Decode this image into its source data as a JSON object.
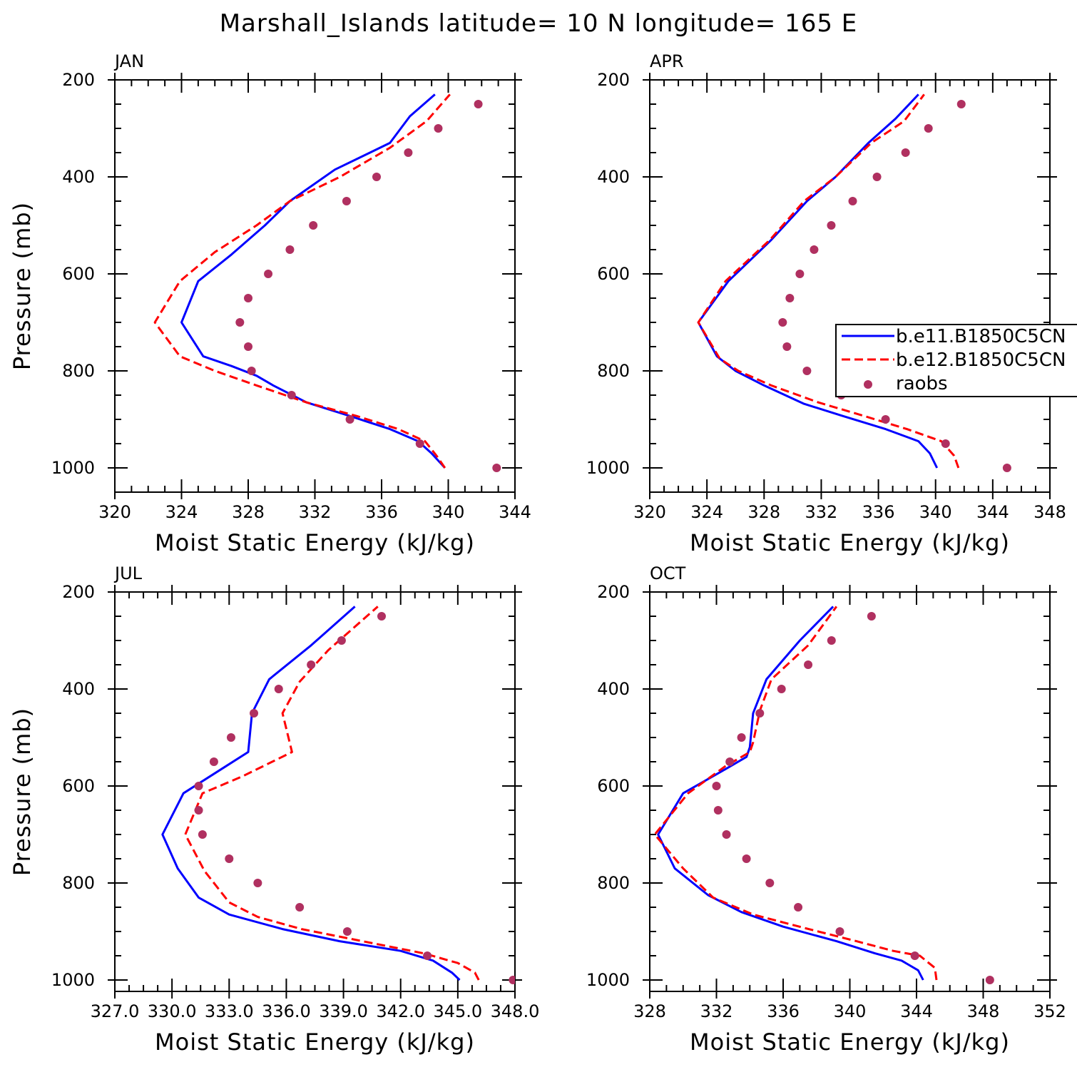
{
  "title": "Marshall_Islands  latitude= 10 N longitude= 165 E",
  "colors": {
    "series1": "#0000ff",
    "series2": "#ff0000",
    "raobs": "#b03060"
  },
  "legend": {
    "entries": [
      "b.e11.B1850C5CN",
      "b.e12.B1850C5CN",
      "raobs"
    ],
    "placement": "right, in APR panel"
  },
  "chart_data": [
    {
      "type": "line",
      "panel": "JAN",
      "xlabel": "Moist Static Energy (kJ/kg)",
      "ylabel": "Pressure (mb)",
      "xlim": [
        320,
        344
      ],
      "ylim": [
        1000,
        200
      ],
      "y_inverted": true,
      "xticks": [
        320,
        324,
        328,
        332,
        336,
        340,
        344
      ],
      "xtick_labels": [
        "320",
        "324",
        "328",
        "332",
        "336",
        "340",
        "344"
      ],
      "yticks": [
        200,
        400,
        600,
        800,
        1000
      ],
      "ytick_labels": [
        "200",
        "400",
        "600",
        "800",
        "1000"
      ],
      "series": [
        {
          "name": "b.e11.B1850C5CN",
          "style": "solid",
          "x": [
            339.8,
            339.0,
            338.2,
            336.5,
            334.0,
            331.5,
            329.5,
            328.5,
            327.0,
            325.3,
            324.0,
            325.0,
            327.0,
            329.0,
            330.5,
            333.2,
            336.5,
            337.7,
            339.2
          ],
          "y": [
            1000,
            970,
            945,
            920,
            892,
            865,
            830,
            810,
            790,
            770,
            700,
            615,
            560,
            500,
            450,
            385,
            330,
            275,
            230
          ]
        },
        {
          "name": "b.e12.B1850C5CN",
          "style": "dashed",
          "x": [
            339.8,
            339.3,
            338.6,
            337.0,
            334.5,
            331.5,
            328.5,
            326.0,
            323.9,
            322.4,
            323.9,
            326.0,
            328.5,
            330.5,
            333.5,
            336.5,
            338.7,
            340.1
          ],
          "y": [
            1000,
            975,
            945,
            920,
            893,
            865,
            830,
            800,
            770,
            700,
            615,
            555,
            500,
            450,
            400,
            340,
            285,
            230
          ]
        },
        {
          "name": "raobs",
          "style": "dots",
          "x": [
            342.9,
            338.3,
            334.1,
            330.6,
            328.2,
            328.0,
            327.5,
            328.0,
            329.2,
            330.5,
            331.9,
            333.9,
            335.7,
            337.6,
            339.4,
            341.8
          ],
          "y": [
            1000,
            950,
            900,
            850,
            800,
            750,
            700,
            650,
            600,
            550,
            500,
            450,
            400,
            350,
            300,
            250
          ]
        }
      ]
    },
    {
      "type": "line",
      "panel": "APR",
      "xlabel": "Moist Static Energy (kJ/kg)",
      "ylabel": "",
      "xlim": [
        320,
        348
      ],
      "ylim": [
        1000,
        200
      ],
      "y_inverted": true,
      "xticks": [
        320,
        324,
        328,
        332,
        336,
        340,
        344,
        348
      ],
      "xtick_labels": [
        "320",
        "324",
        "328",
        "332",
        "336",
        "340",
        "344",
        "348"
      ],
      "yticks": [
        200,
        400,
        600,
        800,
        1000
      ],
      "ytick_labels": [
        "200",
        "400",
        "600",
        "800",
        "1000"
      ],
      "series": [
        {
          "name": "b.e11.B1850C5CN",
          "style": "solid",
          "x": [
            340.1,
            339.6,
            338.8,
            336.5,
            333.5,
            330.8,
            328.0,
            326.0,
            324.7,
            323.4,
            325.5,
            328.5,
            331.0,
            333.0,
            335.3,
            337.2,
            338.8
          ],
          "y": [
            1000,
            970,
            945,
            920,
            893,
            868,
            830,
            800,
            770,
            700,
            615,
            530,
            450,
            400,
            330,
            280,
            230
          ]
        },
        {
          "name": "b.e12.B1850C5CN",
          "style": "dashed",
          "x": [
            341.6,
            341.3,
            340.4,
            338.0,
            335.0,
            331.8,
            328.5,
            326.2,
            324.9,
            323.4,
            325.3,
            328.4,
            330.8,
            333.0,
            335.5,
            337.8,
            339.2
          ],
          "y": [
            1000,
            975,
            945,
            920,
            893,
            865,
            830,
            800,
            775,
            700,
            615,
            530,
            450,
            400,
            330,
            285,
            230
          ]
        },
        {
          "name": "raobs",
          "style": "dots",
          "x": [
            345.0,
            340.7,
            336.5,
            333.4,
            331.0,
            329.6,
            329.3,
            329.8,
            330.5,
            331.5,
            332.7,
            334.2,
            335.9,
            337.9,
            339.5,
            341.8
          ],
          "y": [
            1000,
            950,
            900,
            850,
            800,
            750,
            700,
            650,
            600,
            550,
            500,
            450,
            400,
            350,
            300,
            250
          ]
        }
      ]
    },
    {
      "type": "line",
      "panel": "JUL",
      "xlabel": "Moist Static Energy (kJ/kg)",
      "ylabel": "Pressure (mb)",
      "xlim": [
        327.0,
        348.0
      ],
      "ylim": [
        1000,
        200
      ],
      "y_inverted": true,
      "xticks": [
        327.0,
        330.0,
        333.0,
        336.0,
        339.0,
        342.0,
        345.0,
        348.0
      ],
      "xtick_labels": [
        "327.0",
        "330.0",
        "333.0",
        "336.0",
        "339.0",
        "342.0",
        "345.0",
        "348.0"
      ],
      "yticks": [
        200,
        400,
        600,
        800,
        1000
      ],
      "ytick_labels": [
        "200",
        "400",
        "600",
        "800",
        "1000"
      ],
      "series": [
        {
          "name": "b.e11.B1850C5CN",
          "style": "solid",
          "x": [
            345.1,
            344.7,
            343.7,
            342.0,
            338.8,
            335.8,
            333.0,
            331.4,
            330.3,
            329.5,
            330.6,
            332.8,
            334.0,
            334.2,
            335.1,
            337.3,
            339.6
          ],
          "y": [
            1000,
            985,
            960,
            940,
            920,
            895,
            865,
            830,
            770,
            700,
            615,
            560,
            530,
            450,
            380,
            310,
            230
          ]
        },
        {
          "name": "b.e12.B1850C5CN",
          "style": "dashed",
          "x": [
            346.1,
            345.9,
            345.0,
            343.2,
            340.0,
            336.8,
            334.5,
            333.0,
            331.7,
            330.7,
            331.6,
            333.7,
            336.3,
            335.8,
            336.7,
            338.2,
            340.8
          ],
          "y": [
            1000,
            985,
            965,
            945,
            920,
            895,
            870,
            840,
            775,
            700,
            615,
            580,
            530,
            450,
            385,
            320,
            230
          ]
        },
        {
          "name": "raobs",
          "style": "dots",
          "x": [
            347.9,
            343.4,
            339.2,
            336.7,
            334.5,
            333.0,
            331.6,
            331.4,
            331.4,
            332.2,
            333.1,
            334.3,
            335.6,
            337.3,
            338.9,
            341.0
          ],
          "y": [
            1000,
            950,
            900,
            850,
            800,
            750,
            700,
            650,
            600,
            550,
            500,
            450,
            400,
            350,
            300,
            250
          ]
        }
      ]
    },
    {
      "type": "line",
      "panel": "OCT",
      "xlabel": "Moist Static Energy (kJ/kg)",
      "ylabel": "",
      "xlim": [
        328,
        352
      ],
      "ylim": [
        1000,
        200
      ],
      "y_inverted": true,
      "xticks": [
        328,
        332,
        336,
        340,
        344,
        348,
        352
      ],
      "xtick_labels": [
        "328",
        "332",
        "336",
        "340",
        "344",
        "348",
        "352"
      ],
      "yticks": [
        200,
        400,
        600,
        800,
        1000
      ],
      "ytick_labels": [
        "200",
        "400",
        "600",
        "800",
        "1000"
      ],
      "series": [
        {
          "name": "b.e11.B1850C5CN",
          "style": "solid",
          "x": [
            344.4,
            344.1,
            343.1,
            341.5,
            339.2,
            336.0,
            333.5,
            331.5,
            329.5,
            328.5,
            330.0,
            332.3,
            333.8,
            334.0,
            334.2,
            335.0,
            337.0,
            339.0
          ],
          "y": [
            1000,
            980,
            960,
            945,
            920,
            890,
            860,
            825,
            770,
            700,
            615,
            570,
            540,
            520,
            450,
            380,
            300,
            230
          ]
        },
        {
          "name": "b.e12.B1850C5CN",
          "style": "dashed",
          "x": [
            345.2,
            345.1,
            344.2,
            342.6,
            340.4,
            337.3,
            334.2,
            331.8,
            330.0,
            328.3,
            330.3,
            332.5,
            334.0,
            334.2,
            334.6,
            335.3,
            337.5,
            339.2
          ],
          "y": [
            1000,
            975,
            950,
            940,
            920,
            893,
            865,
            830,
            770,
            700,
            615,
            560,
            530,
            510,
            445,
            380,
            310,
            230
          ]
        },
        {
          "name": "raobs",
          "style": "dots",
          "x": [
            348.4,
            343.9,
            339.4,
            336.9,
            335.2,
            333.8,
            332.6,
            332.1,
            332.0,
            332.8,
            333.5,
            334.6,
            335.9,
            337.5,
            338.9,
            341.3
          ],
          "y": [
            1000,
            950,
            900,
            850,
            800,
            750,
            700,
            650,
            600,
            550,
            500,
            450,
            400,
            350,
            300,
            250
          ]
        }
      ]
    }
  ]
}
